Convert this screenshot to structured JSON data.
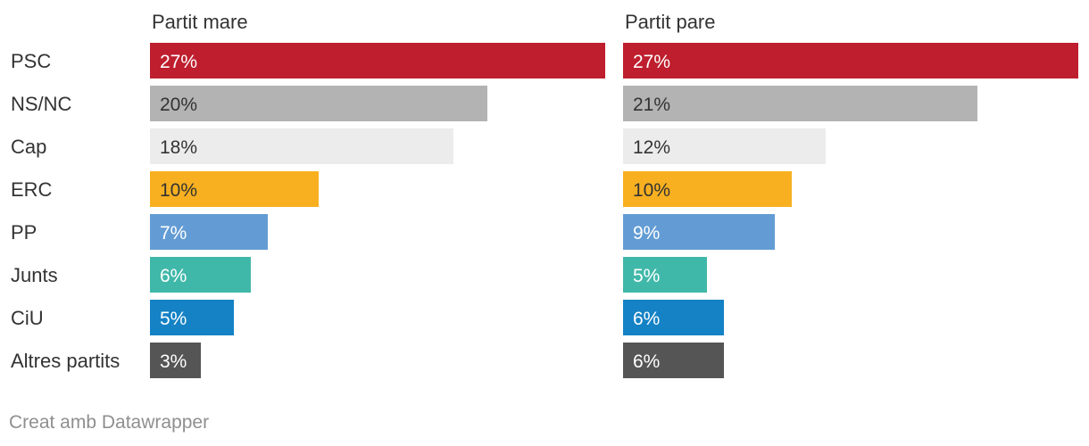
{
  "chart_data": {
    "type": "bar",
    "orientation": "horizontal",
    "categories": [
      "PSC",
      "NS/NC",
      "Cap",
      "ERC",
      "PP",
      "Junts",
      "CiU",
      "Altres partits"
    ],
    "colors": [
      "#be1e2d",
      "#b3b3b3",
      "#ececec",
      "#f8b020",
      "#639cd4",
      "#40b8a9",
      "#1482c5",
      "#555555"
    ],
    "label_colors": [
      "#ffffff",
      "#333333",
      "#333333",
      "#333333",
      "#ffffff",
      "#ffffff",
      "#ffffff",
      "#ffffff"
    ],
    "value_format": "{v}%",
    "xlim": [
      0,
      27
    ],
    "series": [
      {
        "name": "Partit mare",
        "values": [
          27,
          20,
          18,
          10,
          7,
          6,
          5,
          3
        ]
      },
      {
        "name": "Partit pare",
        "values": [
          27,
          21,
          12,
          10,
          9,
          5,
          6,
          6
        ]
      }
    ]
  },
  "footer": "Creat amb Datawrapper"
}
